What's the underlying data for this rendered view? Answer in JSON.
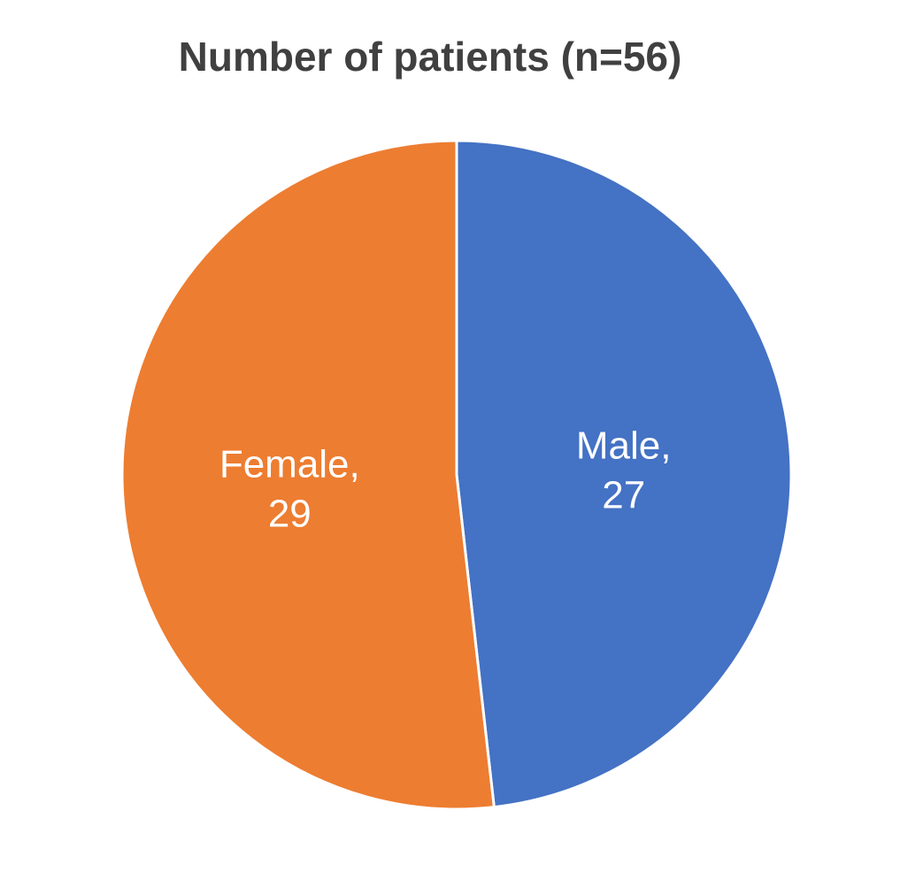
{
  "chart_data": {
    "type": "pie",
    "title": "Number of patients (n=56)",
    "slices": [
      {
        "category": "Male",
        "value": 27,
        "color": "#4472C4",
        "label_line1": "Male,",
        "label_line2": "27"
      },
      {
        "category": "Female",
        "value": 29,
        "color": "#ED7D31",
        "label_line1": "Female,",
        "label_line2": "29"
      }
    ],
    "start_angle_deg": 0,
    "direction": "clockwise",
    "legend": "none"
  }
}
